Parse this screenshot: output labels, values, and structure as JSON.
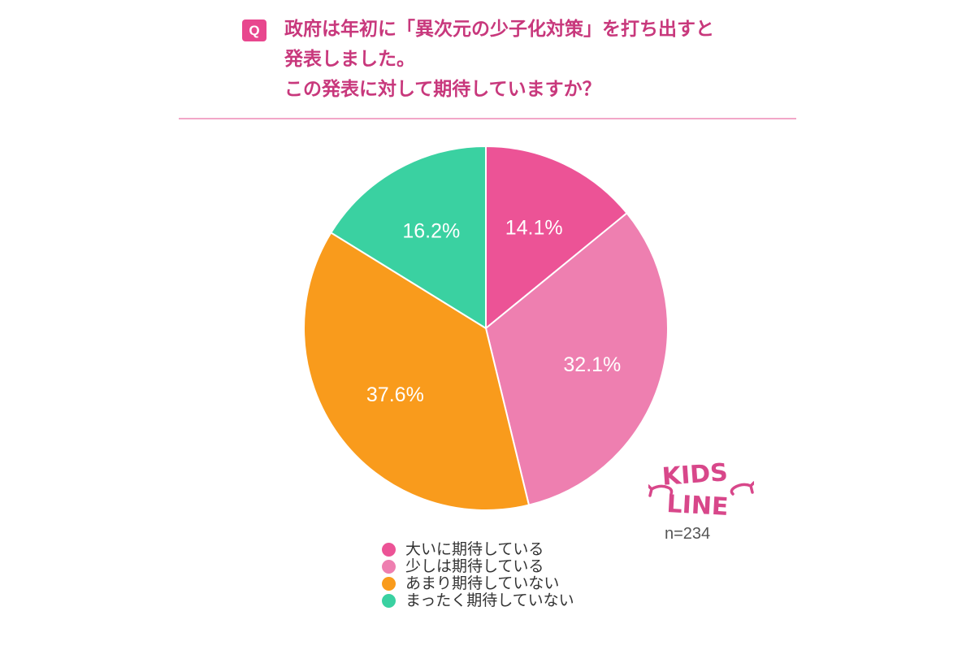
{
  "question": {
    "badge": "Q",
    "lines": [
      "政府は年初に「異次元の少子化対策」を打ち出すと",
      "発表しました。",
      "この発表に対して期待していますか？"
    ]
  },
  "logo": {
    "line1": "KIDS",
    "line2": "LINE"
  },
  "sample_size": "n=234",
  "colors": {
    "accent": "#e8478e",
    "divider": "#f2a7c8"
  },
  "chart_data": {
    "type": "pie",
    "title": "",
    "slices": [
      {
        "label": "大いに期待している",
        "value": 14.1,
        "display": "14.1%",
        "color": "#ec5396"
      },
      {
        "label": "少しは期待している",
        "value": 32.1,
        "display": "32.1%",
        "color": "#ee7fb0"
      },
      {
        "label": "あまり期待していない",
        "value": 37.6,
        "display": "37.6%",
        "color": "#f99b1c"
      },
      {
        "label": "まったく期待していない",
        "value": 16.2,
        "display": "16.2%",
        "color": "#3ad1a1"
      }
    ],
    "start_angle": "12 o'clock",
    "direction": "clockwise",
    "legend_position": "bottom"
  }
}
